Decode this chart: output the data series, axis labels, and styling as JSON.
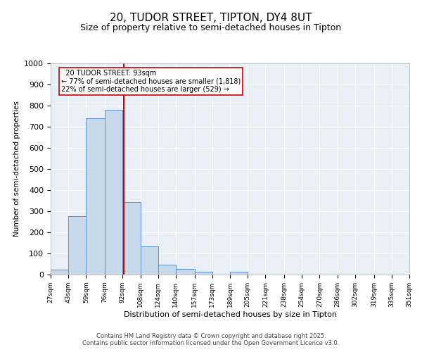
{
  "title1": "20, TUDOR STREET, TIPTON, DY4 8UT",
  "title2": "Size of property relative to semi-detached houses in Tipton",
  "xlabel": "Distribution of semi-detached houses by size in Tipton",
  "ylabel": "Number of semi-detached properties",
  "bins": [
    27,
    43,
    59,
    76,
    92,
    108,
    124,
    140,
    157,
    173,
    189,
    205,
    221,
    238,
    254,
    270,
    286,
    302,
    319,
    335,
    351
  ],
  "counts": [
    22,
    278,
    740,
    780,
    345,
    135,
    48,
    27,
    12,
    0,
    12,
    0,
    0,
    0,
    0,
    0,
    0,
    0,
    0,
    0
  ],
  "bar_facecolor": "#c9d9ec",
  "bar_edgecolor": "#5b8fc9",
  "vline_x": 93,
  "vline_color": "#cc0000",
  "ylim": [
    0,
    1000
  ],
  "yticks": [
    0,
    100,
    200,
    300,
    400,
    500,
    600,
    700,
    800,
    900,
    1000
  ],
  "annotation_title": "20 TUDOR STREET: 93sqm",
  "annotation_line1": "← 77% of semi-detached houses are smaller (1,818)",
  "annotation_line2": "22% of semi-detached houses are larger (529) →",
  "annotation_box_color": "#cc0000",
  "footer1": "Contains HM Land Registry data © Crown copyright and database right 2025.",
  "footer2": "Contains public sector information licensed under the Open Government Licence v3.0.",
  "background_color": "#eaf0f8",
  "grid_color": "#ffffff",
  "title1_fontsize": 11,
  "title2_fontsize": 9
}
